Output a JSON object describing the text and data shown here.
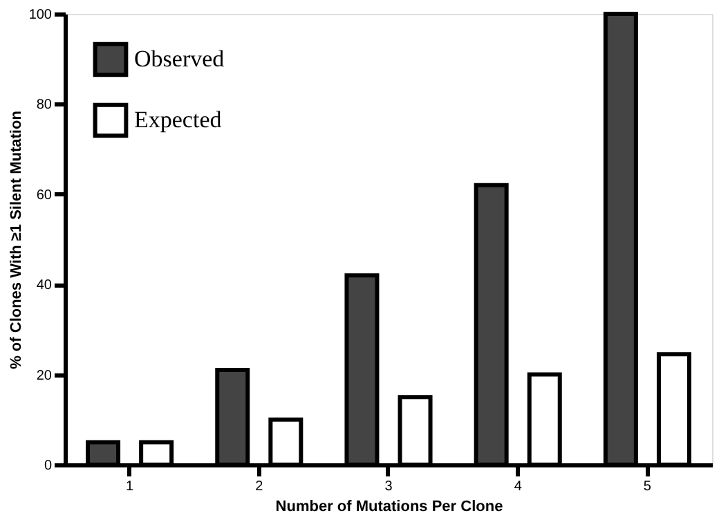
{
  "chart_data": {
    "type": "bar",
    "xlabel": "Number of Mutations Per Clone",
    "ylabel": "% of Clones With ≥1 Silent Mutation",
    "categories": [
      "1",
      "2",
      "3",
      "4",
      "5"
    ],
    "series": [
      {
        "name": "Observed",
        "color": "#444444",
        "values": [
          5,
          21,
          42,
          62,
          100
        ]
      },
      {
        "name": "Expected",
        "color": "#ffffff",
        "values": [
          5,
          10,
          15,
          20,
          24.5
        ]
      }
    ],
    "ylim": [
      0,
      100
    ],
    "yticks": [
      0,
      20,
      40,
      60,
      80,
      100
    ],
    "grid": false,
    "legend": "top left"
  }
}
